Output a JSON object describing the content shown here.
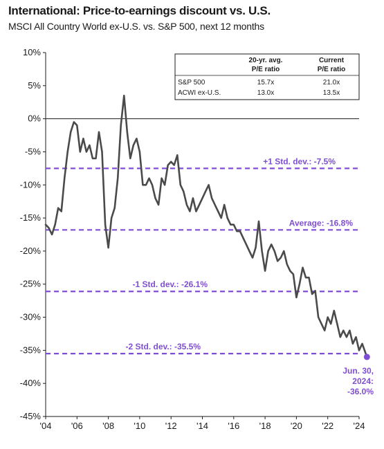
{
  "header": {
    "title": "International: Price-to-earnings discount vs. U.S.",
    "subtitle": "MSCI All Country World ex-U.S. vs. S&P 500, next 12 months"
  },
  "colors": {
    "line": "#4a4a4a",
    "accent": "#7f4fd1",
    "axis": "#1a1a1a"
  },
  "table": {
    "columns": [
      "",
      "20-yr. avg.\nP/E ratio",
      "Current\nP/E ratio"
    ],
    "rows": [
      [
        "S&P 500",
        "15.7x",
        "21.0x"
      ],
      [
        "ACWI ex-U.S.",
        "13.0x",
        "13.5x"
      ]
    ]
  },
  "chart_data": {
    "type": "line",
    "title": "International: Price-to-earnings discount vs. U.S.",
    "subtitle": "MSCI All Country World ex-U.S. vs. S&P 500, next 12 months",
    "xlim": [
      2004,
      2024
    ],
    "ylim": [
      -45,
      10
    ],
    "y_ticks": [
      10,
      5,
      0,
      -5,
      -10,
      -15,
      -20,
      -25,
      -30,
      -35,
      -40,
      -45
    ],
    "y_tick_labels": [
      "10%",
      "5%",
      "0%",
      "-5%",
      "-10%",
      "-15%",
      "-20%",
      "-25%",
      "-30%",
      "-35%",
      "-40%",
      "-45%"
    ],
    "x_ticks": [
      2004,
      2006,
      2008,
      2010,
      2012,
      2014,
      2016,
      2018,
      2020,
      2022,
      2024
    ],
    "x_tick_labels": [
      "'04",
      "'06",
      "'08",
      "'10",
      "'12",
      "'14",
      "'16",
      "'18",
      "'20",
      "'22",
      "'24"
    ],
    "reference_lines": [
      {
        "label": "+1 Std. dev.: -7.5%",
        "value": -7.5
      },
      {
        "label": "Average: -16.8%",
        "value": -16.8
      },
      {
        "label": "-1 Std. dev.: -26.1%",
        "value": -26.1
      },
      {
        "label": "-2 Std. dev.: -35.5%",
        "value": -35.5
      }
    ],
    "endpoint": {
      "x": 2024.5,
      "y": -36.0,
      "label_lines": [
        "Jun. 30,",
        "2024:",
        "-36.0%"
      ]
    },
    "series": [
      {
        "x": [
          2004.0,
          2004.2,
          2004.4,
          2004.6,
          2004.8,
          2005.0,
          2005.2,
          2005.4,
          2005.6,
          2005.8,
          2006.0,
          2006.2,
          2006.4,
          2006.6,
          2006.8,
          2007.0,
          2007.2,
          2007.4,
          2007.6,
          2007.8,
          2008.0,
          2008.2,
          2008.4,
          2008.6,
          2008.8,
          2009.0,
          2009.2,
          2009.4,
          2009.6,
          2009.8,
          2010.0,
          2010.2,
          2010.4,
          2010.6,
          2010.8,
          2011.0,
          2011.2,
          2011.4,
          2011.6,
          2011.8,
          2012.0,
          2012.2,
          2012.4,
          2012.6,
          2012.8,
          2013.0,
          2013.2,
          2013.4,
          2013.6,
          2013.8,
          2014.0,
          2014.2,
          2014.4,
          2014.6,
          2014.8,
          2015.0,
          2015.2,
          2015.4,
          2015.6,
          2015.8,
          2016.0,
          2016.2,
          2016.4,
          2016.6,
          2016.8,
          2017.0,
          2017.2,
          2017.4,
          2017.6,
          2017.8,
          2018.0,
          2018.2,
          2018.4,
          2018.6,
          2018.8,
          2019.0,
          2019.2,
          2019.4,
          2019.6,
          2019.8,
          2020.0,
          2020.2,
          2020.4,
          2020.6,
          2020.8,
          2021.0,
          2021.2,
          2021.4,
          2021.6,
          2021.8,
          2022.0,
          2022.2,
          2022.4,
          2022.6,
          2022.8,
          2023.0,
          2023.2,
          2023.4,
          2023.6,
          2023.8,
          2024.0,
          2024.2,
          2024.5
        ],
        "values": [
          -16,
          -16.5,
          -17.5,
          -16,
          -13.5,
          -14,
          -9,
          -5,
          -2,
          -0.5,
          -1,
          -5,
          -3,
          -5,
          -4,
          -6,
          -6,
          -2,
          -5,
          -16,
          -19.5,
          -15,
          -13.5,
          -9,
          -1,
          3.5,
          -2,
          -6,
          -4,
          -3,
          -5,
          -10,
          -10,
          -9,
          -10,
          -12,
          -13,
          -9,
          -10,
          -7,
          -6.5,
          -7,
          -5.5,
          -10,
          -11,
          -13,
          -14,
          -12,
          -14,
          -13,
          -12,
          -11,
          -10,
          -12,
          -13,
          -14,
          -15,
          -13,
          -15,
          -16,
          -16,
          -17,
          -17,
          -18,
          -19,
          -20,
          -21,
          -19.5,
          -15.5,
          -20,
          -23,
          -20,
          -19,
          -20,
          -21.5,
          -21,
          -20,
          -22,
          -23,
          -23.5,
          -27,
          -25,
          -22.5,
          -24,
          -24,
          -26.5,
          -26,
          -30,
          -31,
          -32,
          -30,
          -31,
          -29,
          -31,
          -33,
          -32,
          -33,
          -32,
          -34,
          -33,
          -35,
          -34,
          -36
        ]
      }
    ]
  }
}
